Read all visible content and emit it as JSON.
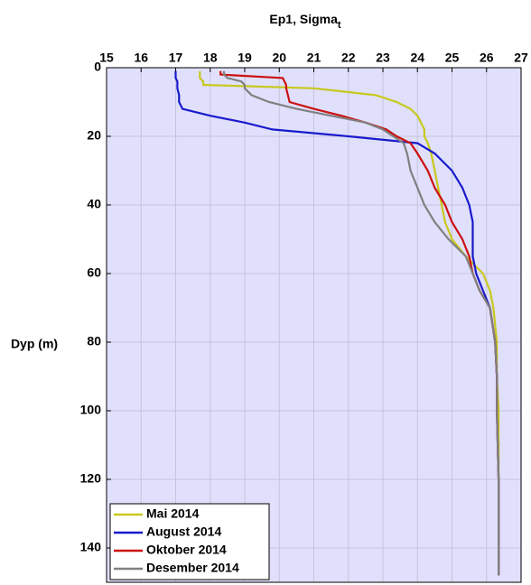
{
  "chart_data": {
    "type": "line",
    "title": "Ep1, Sigma",
    "title_subscript": "t",
    "ylabel": "Dyp (m)",
    "y": [
      1,
      2,
      3,
      4,
      5,
      6,
      8,
      10,
      12,
      14,
      16,
      18,
      20,
      22,
      25,
      30,
      35,
      40,
      45,
      50,
      55,
      60,
      65,
      70,
      80,
      90,
      100,
      120,
      140,
      148
    ],
    "series": [
      {
        "name": "Mai 2014",
        "color": "#c8c81e",
        "values": [
          17.7,
          17.7,
          17.7,
          17.8,
          17.8,
          21.0,
          22.8,
          23.4,
          23.8,
          24.0,
          24.1,
          24.2,
          24.2,
          24.3,
          24.4,
          24.5,
          24.6,
          24.7,
          24.8,
          25.0,
          25.4,
          25.9,
          26.1,
          26.2,
          26.3,
          26.3,
          26.35,
          26.35,
          26.35,
          26.35
        ]
      },
      {
        "name": "August 2014",
        "color": "#1a1acc",
        "values": [
          17.0,
          17.0,
          17.0,
          17.05,
          17.05,
          17.05,
          17.1,
          17.1,
          17.2,
          18.0,
          19.0,
          19.8,
          22.0,
          24.0,
          24.5,
          25.0,
          25.3,
          25.5,
          25.6,
          25.6,
          25.6,
          25.7,
          25.9,
          26.1,
          26.25,
          26.3,
          26.3,
          26.35,
          26.35,
          26.35
        ]
      },
      {
        "name": "Oktober 2014",
        "color": "#cc1111",
        "values": [
          18.3,
          18.3,
          20.1,
          20.15,
          20.2,
          20.2,
          20.25,
          20.3,
          21.0,
          21.8,
          22.5,
          23.1,
          23.4,
          23.8,
          24.0,
          24.3,
          24.5,
          24.8,
          25.0,
          25.3,
          25.5,
          25.6,
          25.8,
          26.1,
          26.25,
          26.3,
          26.3,
          26.35,
          26.35,
          26.35
        ]
      },
      {
        "name": "Desember 2014",
        "color": "#808080",
        "values": [
          18.4,
          18.4,
          18.5,
          18.9,
          19.0,
          19.0,
          19.2,
          19.7,
          20.5,
          21.5,
          22.5,
          23.0,
          23.3,
          23.6,
          23.7,
          23.8,
          24.0,
          24.2,
          24.5,
          24.9,
          25.4,
          25.6,
          25.8,
          26.1,
          26.25,
          26.3,
          26.3,
          26.35,
          26.35,
          26.35
        ]
      }
    ],
    "xlim": [
      15,
      27
    ],
    "xticks": [
      15,
      16,
      17,
      18,
      19,
      20,
      21,
      22,
      23,
      24,
      25,
      26,
      27
    ],
    "ylim": [
      0,
      150
    ],
    "yticks": [
      0,
      20,
      40,
      60,
      80,
      100,
      120,
      140
    ],
    "y_reversed": true,
    "x_axis_position": "top",
    "grid": true,
    "legend": "lower left",
    "background": "#e0e0fc"
  }
}
